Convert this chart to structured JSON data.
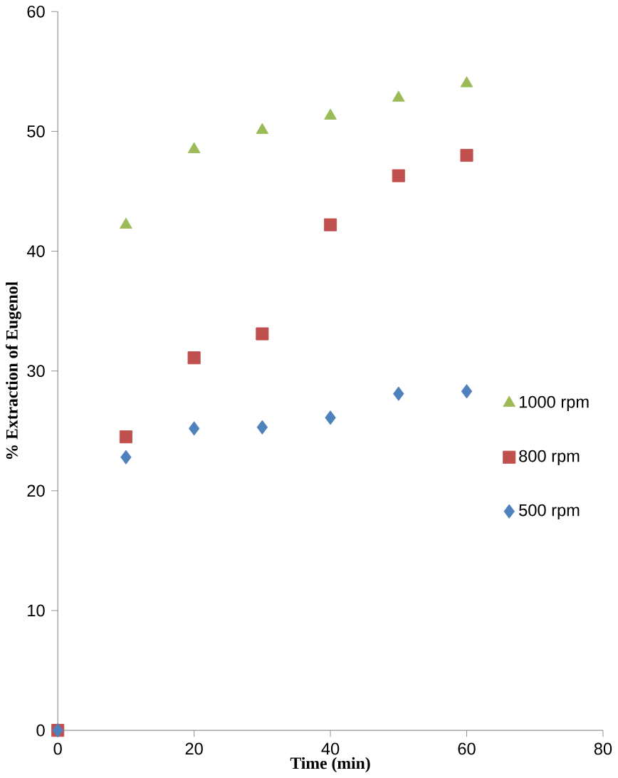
{
  "chart_data": {
    "type": "scatter",
    "xlabel": "Time (min)",
    "ylabel": "% Extraction of Eugenol",
    "xlim": [
      0,
      80
    ],
    "xticks": [
      0,
      20,
      40,
      60,
      80
    ],
    "ylim": [
      0,
      60
    ],
    "yticks": [
      0,
      10,
      20,
      30,
      40,
      50,
      60
    ],
    "grid": false,
    "legend": "right",
    "series": [
      {
        "name": "1000 rpm",
        "color": "#9bbb59",
        "marker": "triangle",
        "x": [
          10,
          20,
          30,
          40,
          50,
          60
        ],
        "values": [
          42.2,
          48.5,
          50.1,
          51.3,
          52.8,
          54.0
        ]
      },
      {
        "name": "800 rpm",
        "color": "#c0504d",
        "marker": "square",
        "x": [
          0,
          10,
          20,
          30,
          40,
          50,
          60
        ],
        "values": [
          0,
          24.5,
          31.1,
          33.1,
          42.2,
          46.3,
          48.0
        ]
      },
      {
        "name": "500 rpm",
        "color": "#4f81bd",
        "marker": "diamond",
        "x": [
          0,
          10,
          20,
          30,
          40,
          50,
          60
        ],
        "values": [
          0,
          22.8,
          25.2,
          25.3,
          26.1,
          28.1,
          28.3
        ]
      }
    ]
  }
}
